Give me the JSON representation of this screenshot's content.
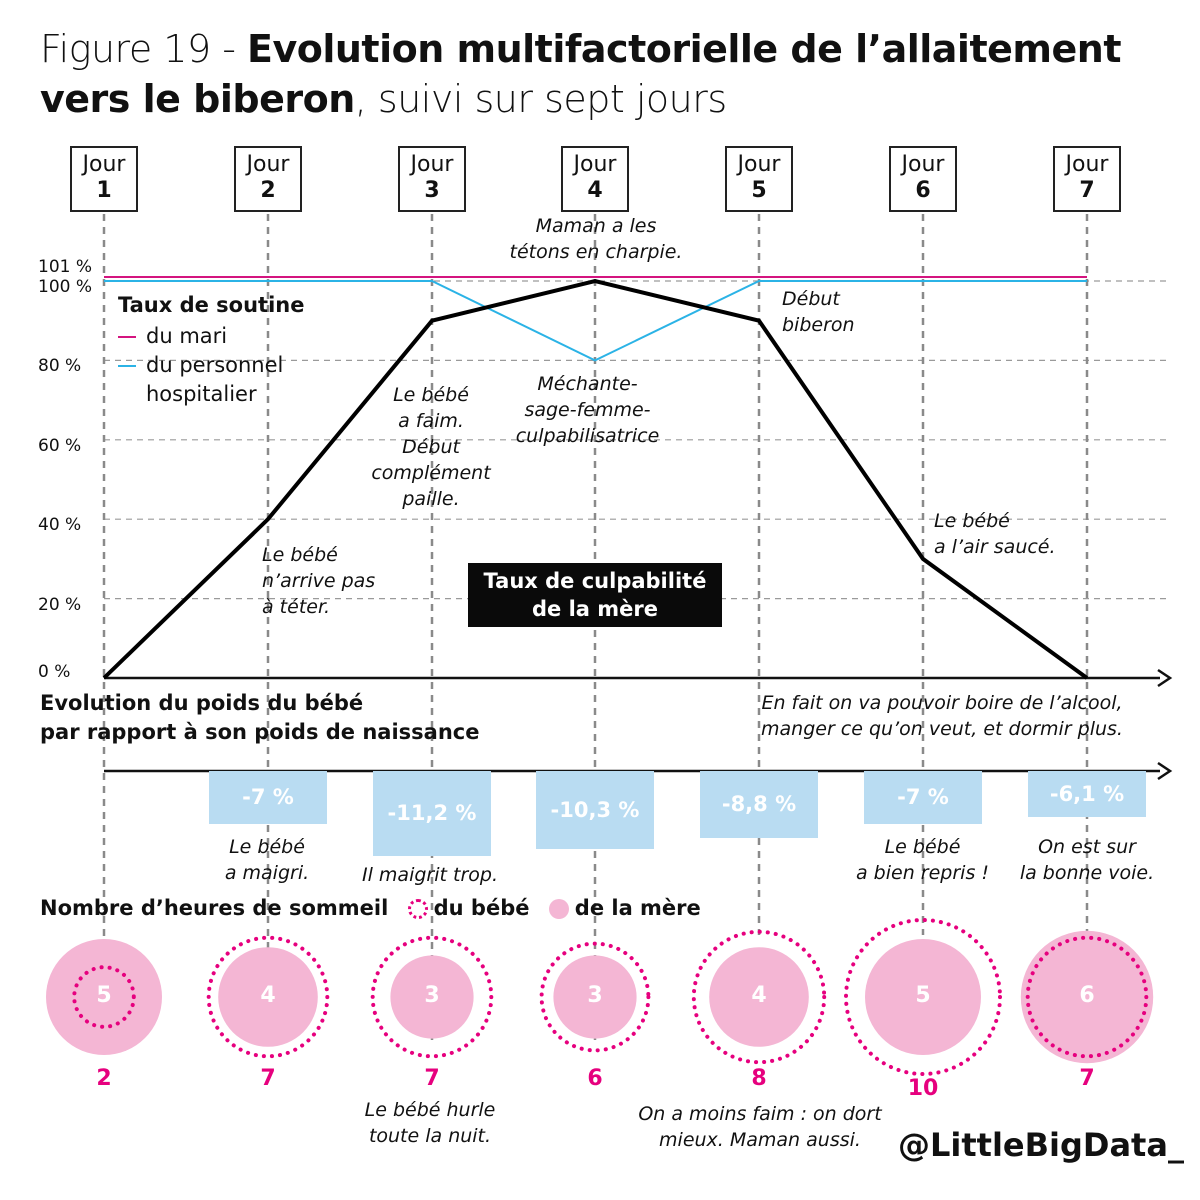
{
  "title": {
    "prefix": "Figure 19 - ",
    "bold_line1": "Evolution multifactorielle de l’allaitement",
    "bold_line2": "vers le biberon",
    "suffix_line2": ", suivi sur sept jours"
  },
  "days": [
    {
      "label": "Jour",
      "number": "1"
    },
    {
      "label": "Jour",
      "number": "2"
    },
    {
      "label": "Jour",
      "number": "3"
    },
    {
      "label": "Jour",
      "number": "4"
    },
    {
      "label": "Jour",
      "number": "5"
    },
    {
      "label": "Jour",
      "number": "6"
    },
    {
      "label": "Jour",
      "number": "7"
    }
  ],
  "y_ticks": [
    "0 %",
    "20 %",
    "40 %",
    "60 %",
    "80 %",
    "100 %",
    "101 %"
  ],
  "legend": {
    "title": "Taux de soutine",
    "husband": "du mari",
    "staff_line1": "du personnel",
    "staff_line2": "hospitalier",
    "husband_color": "#d4147f",
    "staff_color": "#2bb3e6"
  },
  "guilt_label_line1": "Taux de culpabilité",
  "guilt_label_line2": "de la mère",
  "annotations": {
    "day4_top_1": "Maman a les",
    "day4_top_2": "tétons en charpie.",
    "day5_1": "Début",
    "day5_2": "biberon",
    "day3_1": "Le bébé",
    "day3_2": "a faim.",
    "day3_3": "Début",
    "day3_4": "complément",
    "day3_5": "paille.",
    "day4_mid_1": "Méchante-",
    "day4_mid_2": "sage-femme-",
    "day4_mid_3": "culpabilisatrice",
    "day2_1": "Le bébé",
    "day2_2": "n’arrive pas",
    "day2_3": "à téter.",
    "day6_1": "Le bébé",
    "day6_2": "a l’air saucé.",
    "day7_1": "En fait on va pouvoir boire de l’alcool,",
    "day7_2": "manger ce qu’on veut, et dormir plus."
  },
  "weight_section": {
    "title_line1": "Evolution du poids du bébé",
    "title_line2": "par rapport à son poids de naissance",
    "values": [
      "-7 %",
      "-11,2 %",
      "-10,3 %",
      "-8,8 %",
      "-7 %",
      "-6,1 %"
    ],
    "notes": {
      "day2_1": "Le bébé",
      "day2_2": "a maigri.",
      "day3": "Il maigrit trop.",
      "day6_1": "Le bébé",
      "day6_2": "a bien repris !",
      "day7_1": "On est sur",
      "day7_2": "la bonne voie."
    }
  },
  "sleep_section": {
    "title": "Nombre d’heures de sommeil",
    "baby_label": "du bébé",
    "mother_label": "de la mère",
    "baby_color": "#e6007e",
    "mother_color": "#f4b6d4",
    "note_day3_1": "Le bébé hurle",
    "note_day3_2": "toute la nuit.",
    "note_day5_1": "On a moins faim : on dort",
    "note_day5_2": "mieux. Maman aussi."
  },
  "credit": "@LittleBigData_",
  "chart_data": [
    {
      "type": "line",
      "title": "",
      "x": [
        "Jour 1",
        "Jour 2",
        "Jour 3",
        "Jour 4",
        "Jour 5",
        "Jour 6",
        "Jour 7"
      ],
      "ylim": [
        0,
        101
      ],
      "y_ticks": [
        0,
        20,
        40,
        60,
        80,
        100,
        101
      ],
      "series": [
        {
          "name": "Taux de culpabilité de la mère",
          "color": "#000000",
          "values": [
            0,
            40,
            90,
            100,
            90,
            30,
            0
          ]
        },
        {
          "name": "du mari",
          "color": "#d4147f",
          "values": [
            101,
            101,
            101,
            101,
            101,
            101,
            101
          ]
        },
        {
          "name": "du personnel hospitalier",
          "color": "#2bb3e6",
          "values": [
            100,
            100,
            100,
            80,
            100,
            100,
            100
          ]
        }
      ]
    },
    {
      "type": "bar",
      "title": "Evolution du poids du bébé par rapport à son poids de naissance",
      "categories": [
        "Jour 2",
        "Jour 3",
        "Jour 4",
        "Jour 5",
        "Jour 6",
        "Jour 7"
      ],
      "values": [
        -7,
        -11.2,
        -10.3,
        -8.8,
        -7,
        -6.1
      ],
      "color": "#b9dcf2"
    },
    {
      "type": "scatter",
      "title": "Nombre d’heures de sommeil",
      "categories": [
        "Jour 1",
        "Jour 2",
        "Jour 3",
        "Jour 4",
        "Jour 5",
        "Jour 6",
        "Jour 7"
      ],
      "series": [
        {
          "name": "du bébé",
          "values": [
            2,
            7,
            7,
            6,
            8,
            10,
            7
          ]
        },
        {
          "name": "de la mère",
          "values": [
            5,
            4,
            3,
            3,
            4,
            5,
            6
          ]
        }
      ]
    }
  ]
}
